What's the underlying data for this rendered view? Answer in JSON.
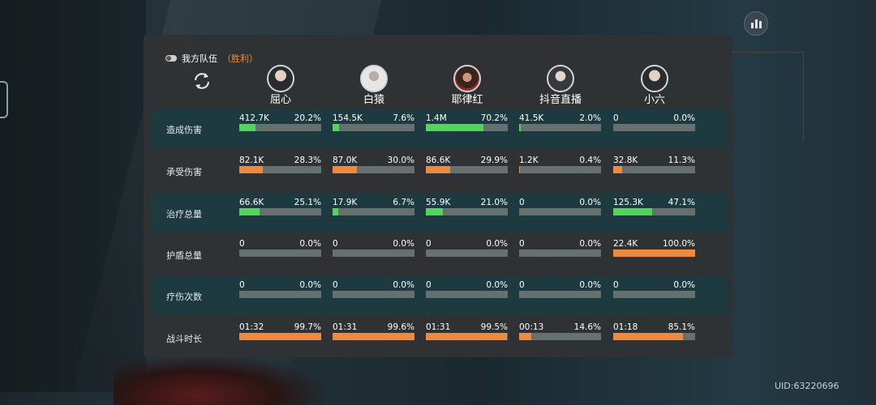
{
  "team": {
    "title": "我方队伍",
    "result": "（胜利）"
  },
  "uid": "UID:63220696",
  "colors": {
    "green": "#52d55a",
    "orange": "#ed8a3d",
    "track": "#66706e",
    "accent": "#f08b3d"
  },
  "heroes": [
    {
      "name": "屈心",
      "avatar": "avatar-dark-hair"
    },
    {
      "name": "白猿",
      "avatar": "avatar-white-ape"
    },
    {
      "name": "耶律红",
      "avatar": "avatar-red-warrior"
    },
    {
      "name": "抖音直播",
      "avatar": "avatar-long-hair"
    },
    {
      "name": "小六",
      "avatar": "avatar-youth"
    }
  ],
  "rows": [
    {
      "label": "造成伤害",
      "color": "green",
      "cells": [
        {
          "value": "412.7K",
          "percent": "20.2%",
          "fraction": 0.202
        },
        {
          "value": "154.5K",
          "percent": "7.6%",
          "fraction": 0.076
        },
        {
          "value": "1.4M",
          "percent": "70.2%",
          "fraction": 0.702
        },
        {
          "value": "41.5K",
          "percent": "2.0%",
          "fraction": 0.02
        },
        {
          "value": "0",
          "percent": "0.0%",
          "fraction": 0
        }
      ]
    },
    {
      "label": "承受伤害",
      "color": "orange",
      "cells": [
        {
          "value": "82.1K",
          "percent": "28.3%",
          "fraction": 0.283
        },
        {
          "value": "87.0K",
          "percent": "30.0%",
          "fraction": 0.3
        },
        {
          "value": "86.6K",
          "percent": "29.9%",
          "fraction": 0.299
        },
        {
          "value": "1.2K",
          "percent": "0.4%",
          "fraction": 0.004
        },
        {
          "value": "32.8K",
          "percent": "11.3%",
          "fraction": 0.113
        }
      ]
    },
    {
      "label": "治疗总量",
      "color": "green",
      "cells": [
        {
          "value": "66.6K",
          "percent": "25.1%",
          "fraction": 0.251
        },
        {
          "value": "17.9K",
          "percent": "6.7%",
          "fraction": 0.067
        },
        {
          "value": "55.9K",
          "percent": "21.0%",
          "fraction": 0.21
        },
        {
          "value": "0",
          "percent": "0.0%",
          "fraction": 0
        },
        {
          "value": "125.3K",
          "percent": "47.1%",
          "fraction": 0.471
        }
      ]
    },
    {
      "label": "护盾总量",
      "color": "orange",
      "cells": [
        {
          "value": "0",
          "percent": "0.0%",
          "fraction": 0
        },
        {
          "value": "0",
          "percent": "0.0%",
          "fraction": 0
        },
        {
          "value": "0",
          "percent": "0.0%",
          "fraction": 0
        },
        {
          "value": "0",
          "percent": "0.0%",
          "fraction": 0
        },
        {
          "value": "22.4K",
          "percent": "100.0%",
          "fraction": 1.0
        }
      ]
    },
    {
      "label": "疗伤次数",
      "color": "green",
      "cells": [
        {
          "value": "0",
          "percent": "0.0%",
          "fraction": 0
        },
        {
          "value": "0",
          "percent": "0.0%",
          "fraction": 0
        },
        {
          "value": "0",
          "percent": "0.0%",
          "fraction": 0
        },
        {
          "value": "0",
          "percent": "0.0%",
          "fraction": 0
        },
        {
          "value": "0",
          "percent": "0.0%",
          "fraction": 0
        }
      ]
    },
    {
      "label": "战斗时长",
      "color": "orange",
      "cells": [
        {
          "value": "01:32",
          "percent": "99.7%",
          "fraction": 0.997
        },
        {
          "value": "01:31",
          "percent": "99.6%",
          "fraction": 0.996
        },
        {
          "value": "01:31",
          "percent": "99.5%",
          "fraction": 0.995
        },
        {
          "value": "00:13",
          "percent": "14.6%",
          "fraction": 0.146
        },
        {
          "value": "01:18",
          "percent": "85.1%",
          "fraction": 0.851
        }
      ]
    }
  ]
}
